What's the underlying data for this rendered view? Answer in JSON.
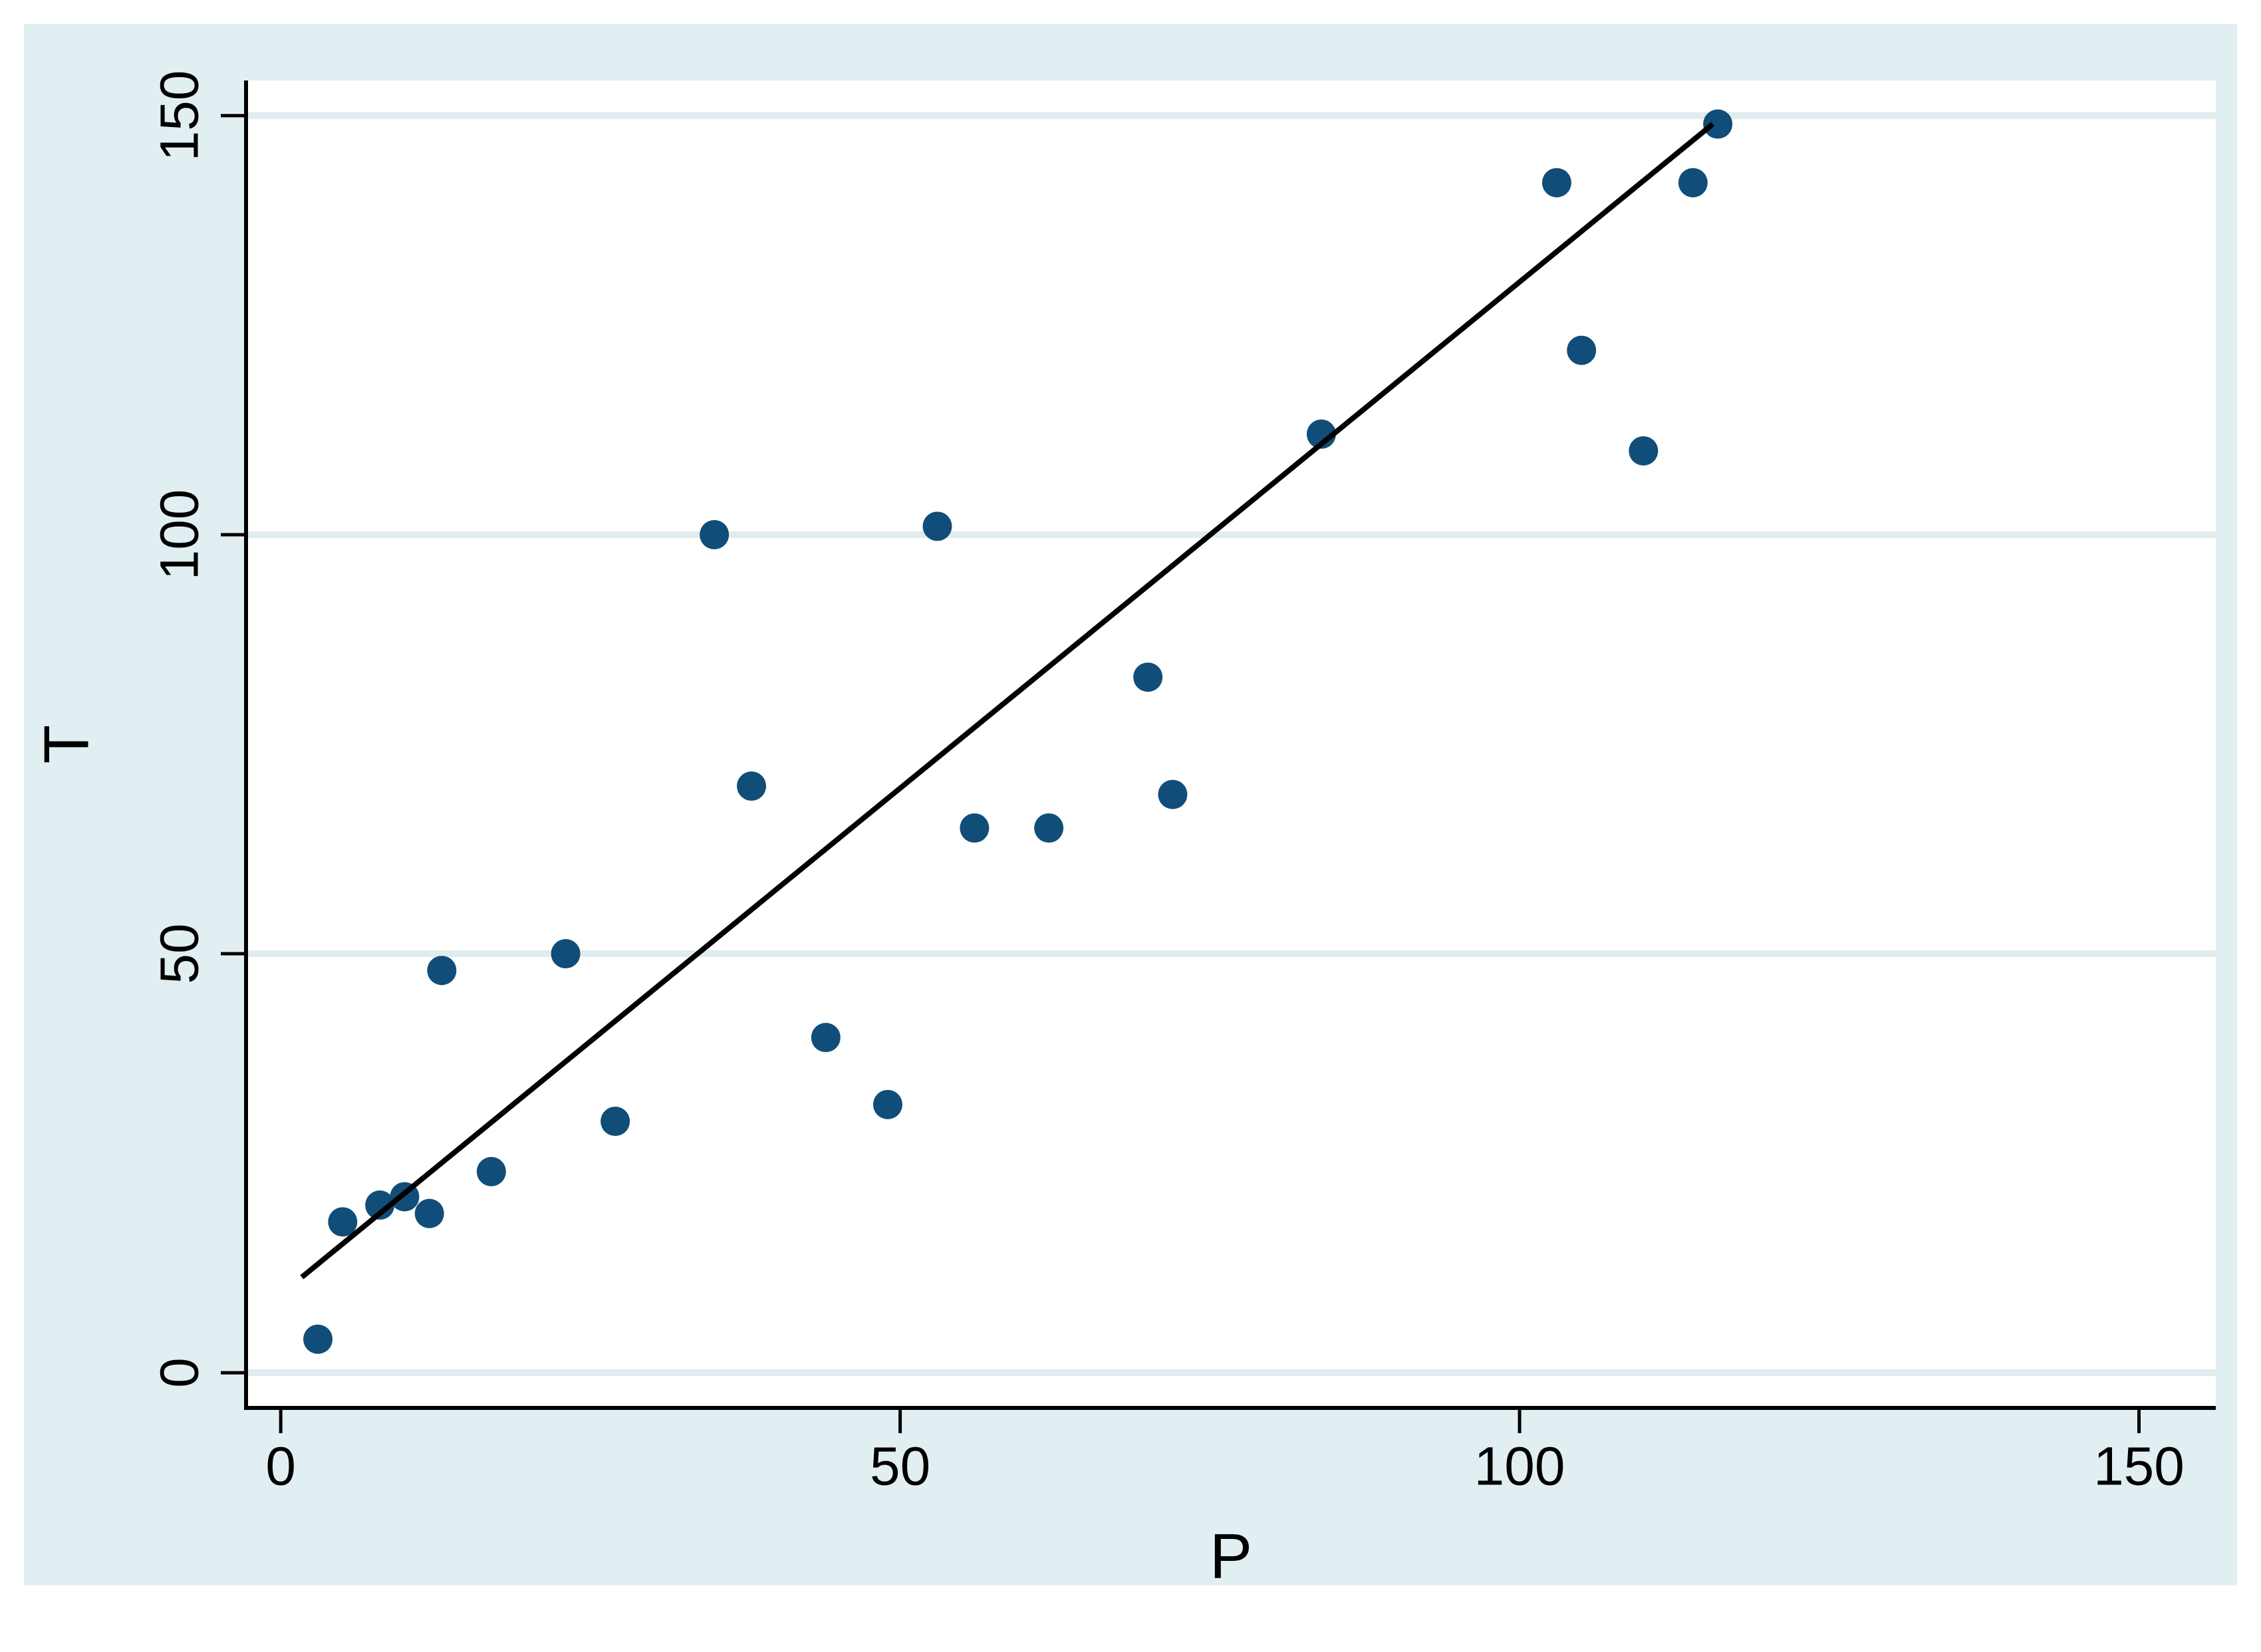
{
  "chart_data": {
    "type": "scatter",
    "xlabel": "P",
    "ylabel": "T",
    "x_ticks": [
      0,
      50,
      100,
      150
    ],
    "y_ticks": [
      0,
      50,
      100,
      150
    ],
    "xlim": [
      -2.8,
      156.2
    ],
    "ylim": [
      -4.2,
      154.2
    ],
    "grid": "horizontal-only",
    "legend": "none",
    "points": [
      [
        3,
        4
      ],
      [
        5,
        18
      ],
      [
        8,
        20
      ],
      [
        10,
        21
      ],
      [
        12,
        19
      ],
      [
        13,
        48
      ],
      [
        17,
        24
      ],
      [
        23,
        50
      ],
      [
        27,
        30
      ],
      [
        35,
        100
      ],
      [
        38,
        70
      ],
      [
        44,
        40
      ],
      [
        49,
        32
      ],
      [
        53,
        101
      ],
      [
        56,
        65
      ],
      [
        62,
        65
      ],
      [
        70,
        83
      ],
      [
        72,
        69
      ],
      [
        84,
        112
      ],
      [
        103,
        142
      ],
      [
        105,
        122
      ],
      [
        110,
        110
      ],
      [
        114,
        142
      ],
      [
        116,
        149
      ]
    ],
    "series": [
      {
        "name": "T",
        "type": "scatter"
      },
      {
        "name": "linear-fit",
        "type": "line"
      }
    ],
    "trend_line": {
      "x1": 1.7,
      "y1": 11.4,
      "x2": 115.6,
      "y2": 149.0
    },
    "colors": {
      "background": "#e2eff2",
      "plot_background": "#ffffff",
      "gridline": "#dfedef",
      "point": "#104d78",
      "fit_line": "#000000",
      "axis": "#000000",
      "text": "#000000"
    }
  }
}
